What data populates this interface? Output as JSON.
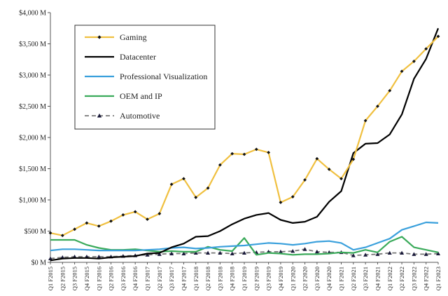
{
  "chart_data": {
    "type": "line",
    "title": "",
    "xlabel": "",
    "ylabel": "",
    "ylim": [
      0,
      4000
    ],
    "y_ticks": [
      0,
      500,
      1000,
      1500,
      2000,
      2500,
      3000,
      3500,
      4000
    ],
    "y_tick_labels": [
      "$0 M",
      "$500 M",
      "$1,000 M",
      "$1,500 M",
      "$2,000 M",
      "$2,500 M",
      "$3,000 M",
      "$3,500 M",
      "$4,000 M"
    ],
    "grid": false,
    "legend_position": "top-left",
    "categories": [
      "Q1 F2015",
      "Q2 F2015",
      "Q3 F2015",
      "Q4 F2015",
      "Q1 F2016",
      "Q2 F2016",
      "Q3 F2016",
      "Q4 F2016",
      "Q1 F2017",
      "Q2 F2017",
      "Q3 F2017",
      "Q4 F2017",
      "Q1 F2018",
      "Q2 F2018",
      "Q3 F2018",
      "Q4 F2018",
      "Q1 F2019",
      "Q2 F2019",
      "Q3 F2019",
      "Q4 F2019",
      "Q1 F2020",
      "Q2 F2020",
      "Q3 F2020",
      "Q4 F2020",
      "Q1 F2021",
      "Q2 F2021",
      "Q3 F2021",
      "Q4 F2021",
      "Q1 F2022",
      "Q2 F2022",
      "Q3 F2022",
      "Q4 F2022",
      "Q1 F2023"
    ],
    "series": [
      {
        "name": "Gaming",
        "color": "#f0c040",
        "marker": "diamond",
        "values": [
          470,
          430,
          530,
          630,
          580,
          660,
          760,
          810,
          690,
          780,
          1250,
          1340,
          1040,
          1190,
          1560,
          1740,
          1730,
          1810,
          1760,
          960,
          1050,
          1320,
          1660,
          1490,
          1340,
          1650,
          2270,
          2500,
          2750,
          3060,
          3220,
          3420,
          3620
        ]
      },
      {
        "name": "Datacenter",
        "color": "#000000",
        "marker": "none",
        "values": [
          30,
          60,
          70,
          70,
          60,
          80,
          90,
          100,
          140,
          150,
          240,
          300,
          410,
          420,
          500,
          610,
          700,
          760,
          790,
          680,
          630,
          650,
          730,
          970,
          1140,
          1750,
          1900,
          1910,
          2050,
          2370,
          2940,
          3260,
          3750
        ]
      },
      {
        "name": "Professional Visualization",
        "color": "#3aa0dc",
        "marker": "none",
        "values": [
          190,
          210,
          210,
          200,
          190,
          190,
          190,
          190,
          200,
          210,
          230,
          240,
          220,
          230,
          250,
          260,
          270,
          290,
          310,
          300,
          280,
          300,
          330,
          340,
          310,
          200,
          240,
          310,
          380,
          520,
          580,
          640,
          630
        ]
      },
      {
        "name": "OEM and IP",
        "color": "#3aaa5a",
        "marker": "none",
        "values": [
          360,
          360,
          360,
          280,
          230,
          200,
          200,
          210,
          190,
          170,
          180,
          170,
          170,
          250,
          200,
          180,
          390,
          120,
          150,
          140,
          120,
          130,
          130,
          140,
          160,
          150,
          200,
          160,
          330,
          410,
          240,
          200,
          160
        ]
      },
      {
        "name": "Automotive",
        "color": "#777777",
        "marker": "triangle",
        "values": [
          60,
          80,
          90,
          90,
          90,
          90,
          100,
          110,
          120,
          130,
          140,
          140,
          150,
          150,
          150,
          140,
          150,
          160,
          170,
          170,
          180,
          210,
          170,
          160,
          160,
          110,
          120,
          130,
          150,
          150,
          130,
          130,
          140
        ]
      }
    ]
  }
}
